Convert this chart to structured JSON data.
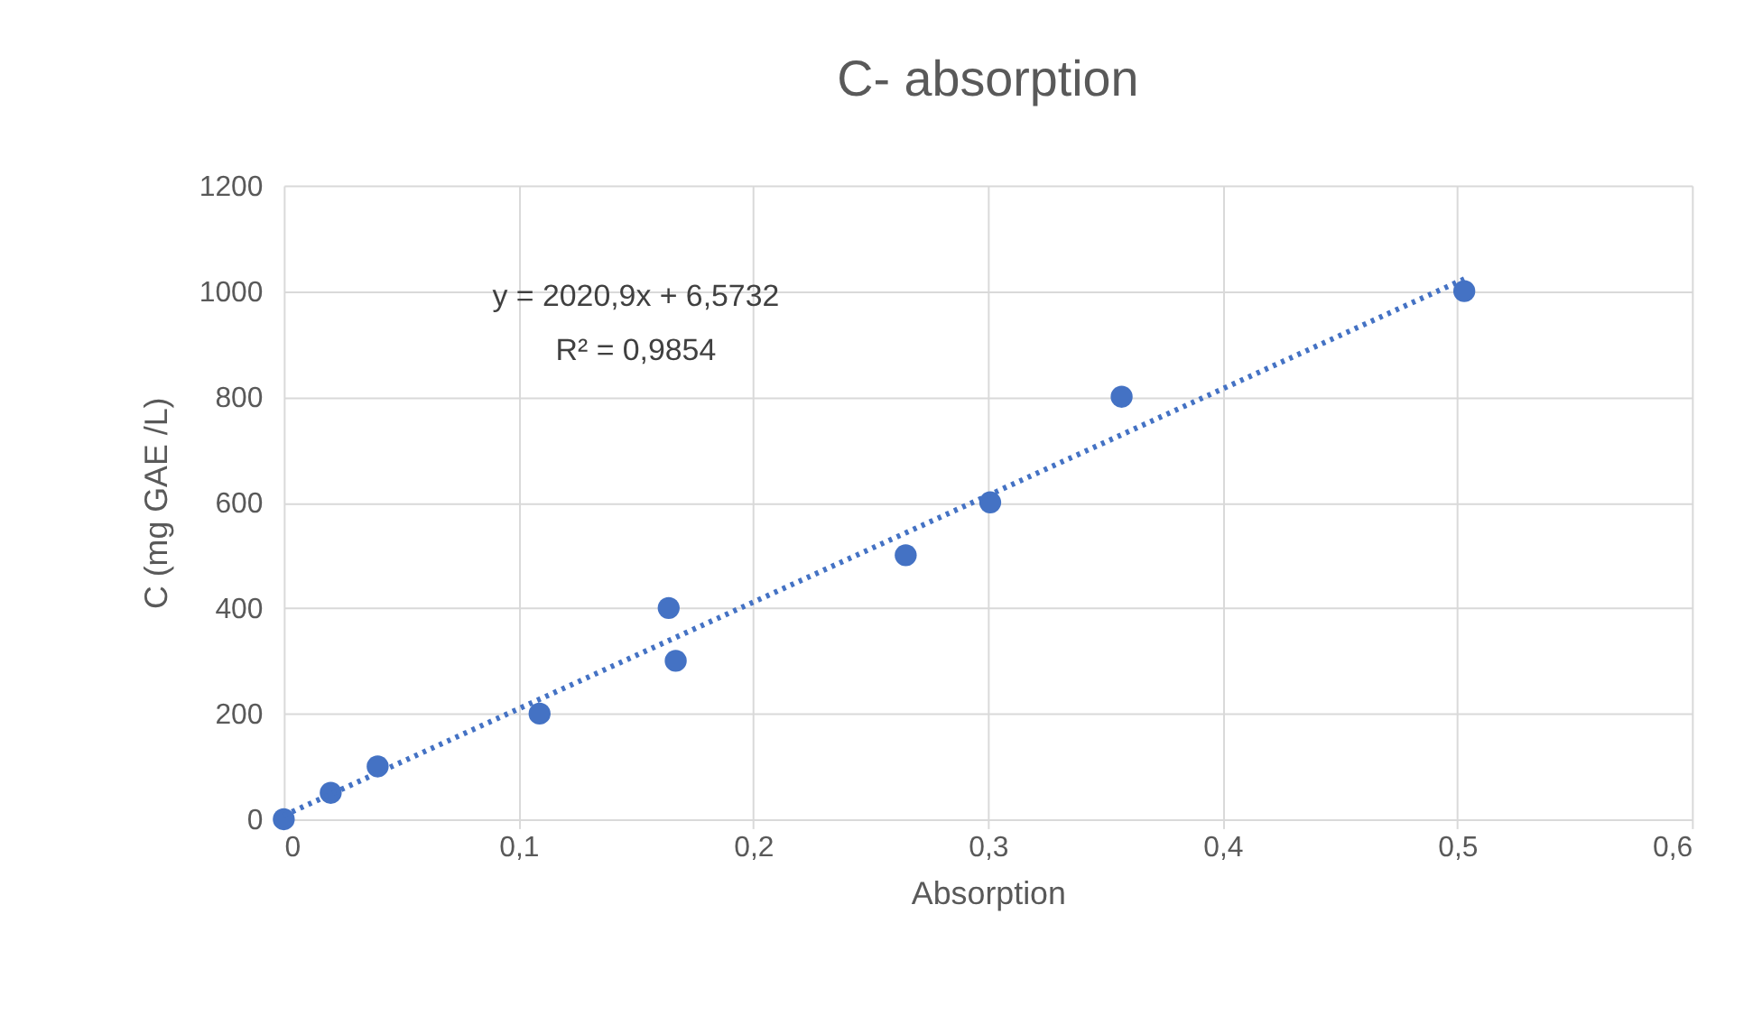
{
  "chart_data": {
    "type": "scatter",
    "title": "C- absorption",
    "xlabel": "Absorption",
    "ylabel": "C (mg GAE /L)",
    "series": [
      {
        "marker": "circle",
        "color": "#4472c4",
        "x": [
          0,
          0.02,
          0.04,
          0.109,
          0.164,
          0.167,
          0.265,
          0.301,
          0.357,
          0.503
        ],
        "values": [
          0,
          50,
          100,
          200,
          400,
          300,
          500,
          600,
          800,
          1000
        ]
      },
      {
        "type": "line",
        "color": "#4472c4",
        "line_style": "dotted",
        "x": [
          0,
          0.503
        ],
        "values": [
          7,
          1023
        ]
      }
    ],
    "annotations": [
      "y = 2020,9x + 6,5732",
      "R² = 0,9854"
    ],
    "xlim": [
      0,
      0.6
    ],
    "xticks": [
      0,
      {
        "value": 0.1,
        "label": "0,1"
      },
      {
        "value": 0.2,
        "label": "0,2"
      },
      {
        "value": 0.3,
        "label": "0,3"
      },
      {
        "value": 0.4,
        "label": "0,4"
      },
      {
        "value": 0.5,
        "label": "0,5"
      },
      {
        "value": 0.6,
        "label": "0,6"
      }
    ],
    "ylim": [
      0,
      1200
    ],
    "yticks": [
      0,
      200,
      400,
      600,
      800,
      1000,
      1200
    ],
    "grid": true
  }
}
